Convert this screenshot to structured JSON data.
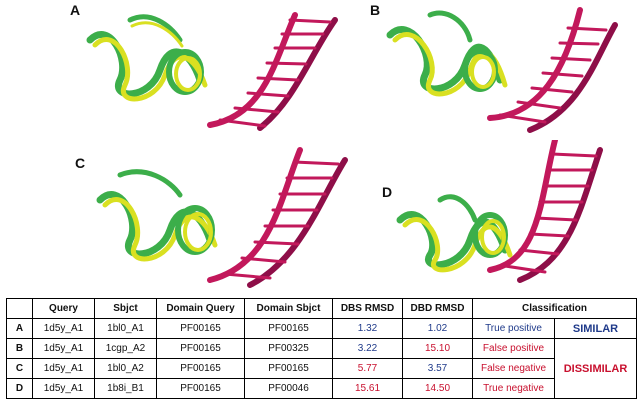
{
  "panels": [
    {
      "label": "A"
    },
    {
      "label": "B"
    },
    {
      "label": "C"
    },
    {
      "label": "D"
    }
  ],
  "table": {
    "headers": [
      "",
      "Query",
      "Sbjct",
      "Domain Query",
      "Domain Sbjct",
      "DBS RMSD",
      "DBD RMSD",
      "Classification"
    ],
    "rows": [
      {
        "label": "A",
        "query": "1d5y_A1",
        "sbjct": "1bl0_A1",
        "domain_query": "PF00165",
        "domain_sbjct": "PF00165",
        "dbs_rmsd": "1.32",
        "dbd_rmsd": "1.02",
        "classification": "True positive"
      },
      {
        "label": "B",
        "query": "1d5y_A1",
        "sbjct": "1cgp_A2",
        "domain_query": "PF00165",
        "domain_sbjct": "PF00325",
        "dbs_rmsd": "3.22",
        "dbd_rmsd": "15.10",
        "classification": "False positive"
      },
      {
        "label": "C",
        "query": "1d5y_A1",
        "sbjct": "1bl0_A2",
        "domain_query": "PF00165",
        "domain_sbjct": "PF00165",
        "dbs_rmsd": "5.77",
        "dbd_rmsd": "3.57",
        "classification": "False negative"
      },
      {
        "label": "D",
        "query": "1d5y_A1",
        "sbjct": "1b8i_B1",
        "domain_query": "PF00165",
        "domain_sbjct": "PF00046",
        "dbs_rmsd": "15.61",
        "dbd_rmsd": "14.50",
        "classification": "True negative"
      }
    ],
    "groups": {
      "similar": "SIMILAR",
      "dissimilar": "DISSIMILAR"
    }
  },
  "colors": {
    "dna": "#c2185b",
    "dna_dark": "#8e0e48",
    "protein_green": "#3cae4a",
    "protein_yellow": "#d9e021",
    "blue_text": "#1f3a8a",
    "red_text": "#c8102e"
  }
}
